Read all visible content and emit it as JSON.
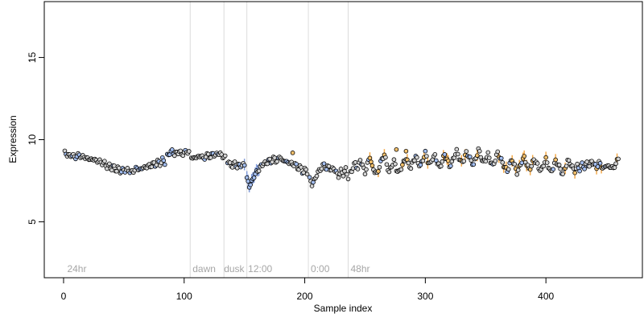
{
  "chart_data": {
    "type": "scatter",
    "title": "",
    "xlabel": "Sample index",
    "ylabel": "Expression",
    "xlim": [
      -16,
      480
    ],
    "ylim": [
      1.6,
      18.4
    ],
    "x_ticks": [
      0,
      100,
      200,
      300,
      400
    ],
    "y_ticks": [
      5,
      10,
      15
    ],
    "grid": false,
    "legend": "none",
    "colors": {
      "axis": "#000000",
      "marker_edge": "#000000",
      "marker_fill_default": "#d3d3d3",
      "marker_fill_blue": "#a4bff2",
      "marker_fill_orange": "#f5c16c",
      "vline": "#dcdcdc",
      "annotation": "#a6a6a6",
      "error_blue": "#7f9ad8",
      "error_orange": "#f3a94a"
    },
    "vertical_lines": [
      105,
      133,
      152,
      203,
      236
    ],
    "annotations": [
      {
        "text": "24hr",
        "x": 3
      },
      {
        "text": "dawn",
        "x": 107
      },
      {
        "text": "dusk",
        "x": 133
      },
      {
        "text": "12:00",
        "x": 153
      },
      {
        "text": "0:00",
        "x": 205
      },
      {
        "text": "48hr",
        "x": 238
      }
    ],
    "series": [
      {
        "segments": [
          {
            "x0": 1,
            "x1": 84,
            "ys": [
              9.2,
              9.1,
              9.0,
              9.1,
              8.9,
              9.0,
              9.1,
              8.9,
              9.0,
              8.8,
              8.9,
              8.7,
              8.9,
              8.6,
              8.8,
              8.5,
              8.7,
              8.3,
              8.5,
              8.2,
              8.4,
              8.1,
              8.3,
              8.0,
              8.2,
              8.1,
              8.2,
              8.0,
              8.1,
              8.2,
              8.3,
              8.1,
              8.4,
              8.2,
              8.5,
              8.3,
              8.6,
              8.4,
              8.7,
              8.5,
              8.8,
              8.6
            ]
          },
          {
            "x0": 86,
            "x1": 104,
            "ys": [
              9.0,
              9.2,
              9.3,
              9.1,
              9.2,
              9.3,
              9.1,
              9.2,
              9.3,
              9.2
            ]
          },
          {
            "x0": 106,
            "x1": 134,
            "ys": [
              9.0,
              8.8,
              9.0,
              8.9,
              9.1,
              8.8,
              9.0,
              9.1,
              8.9,
              9.2,
              9.0,
              9.2,
              9.1,
              9.0,
              8.9
            ]
          },
          {
            "x0": 136,
            "x1": 150,
            "ys": [
              8.7,
              8.5,
              8.4,
              8.6,
              8.3,
              8.5,
              8.4,
              8.5
            ]
          },
          {
            "x0": 152,
            "x1": 202,
            "ys": [
              7.6,
              7.2,
              7.4,
              7.8,
              8.0,
              8.2,
              8.4,
              8.6,
              8.5,
              8.8,
              8.6,
              8.9,
              8.7,
              8.8,
              9.0,
              8.6,
              8.8,
              8.5,
              8.7,
              8.4,
              8.6,
              8.2,
              8.4,
              8.0,
              8.2,
              8.0
            ]
          },
          {
            "x0": 204,
            "x1": 236,
            "ys": [
              7.6,
              7.3,
              7.5,
              7.9,
              8.1,
              8.3,
              8.5,
              8.2,
              8.4,
              8.1,
              8.3,
              8.0,
              7.8,
              8.1,
              7.9,
              8.2,
              7.7
            ]
          },
          {
            "x0": 238,
            "x1": 460,
            "ys": [
              8.0,
              8.3,
              8.6,
              8.2,
              8.8,
              8.4,
              8.0,
              8.5,
              9.0,
              8.3,
              8.1,
              7.9,
              8.4,
              8.8,
              9.1,
              8.5,
              8.0,
              8.4,
              8.7,
              8.2,
              8.0,
              8.3,
              8.6,
              8.9,
              8.5,
              8.3,
              8.7,
              9.0,
              8.6,
              8.4,
              8.8,
              9.2,
              8.7,
              8.5,
              8.9,
              9.0,
              8.6,
              8.3,
              8.7,
              9.1,
              8.8,
              8.4,
              8.6,
              9.0,
              9.3,
              8.9,
              8.6,
              8.8,
              9.2,
              9.0,
              8.7,
              8.5,
              8.9,
              9.4,
              9.0,
              8.6,
              8.8,
              9.1,
              8.7,
              8.4,
              8.8,
              9.2,
              8.9,
              8.6,
              8.3,
              8.1,
              8.5,
              8.8,
              8.4,
              8.0,
              8.3,
              8.7,
              8.9,
              8.5,
              8.2,
              8.4,
              8.8,
              8.6,
              8.3,
              8.1,
              8.5,
              8.8,
              8.4,
              8.0,
              8.3,
              8.7,
              8.5,
              8.2,
              7.9,
              8.3,
              8.7,
              8.6,
              8.3,
              8.1,
              8.4,
              8.2,
              8.5,
              8.3,
              8.6,
              8.4,
              8.7,
              8.5,
              8.3,
              8.6,
              8.4,
              8.2,
              8.5,
              8.3,
              8.4,
              8.2,
              8.6,
              8.8
            ]
          }
        ]
      }
    ],
    "highlight_points": [
      {
        "x": 276,
        "y": 9.4,
        "fill": "orange"
      },
      {
        "x": 284,
        "y": 9.3,
        "fill": "orange"
      },
      {
        "x": 190,
        "y": 9.2,
        "fill": "orange"
      }
    ]
  }
}
